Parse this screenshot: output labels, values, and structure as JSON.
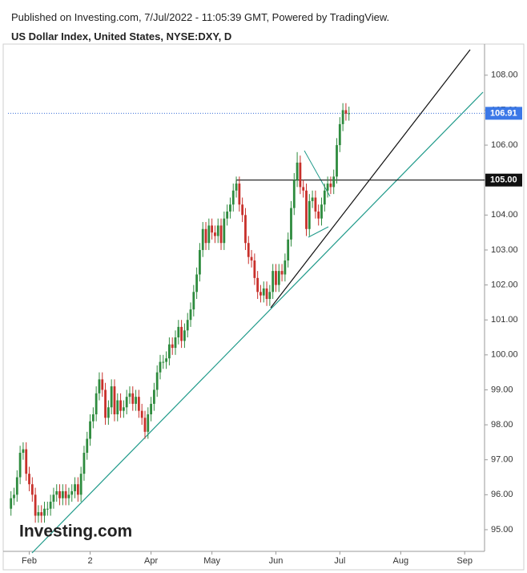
{
  "header": {
    "published": "Published on Investing.com, 7/Jul/2022 - 11:05:39 GMT, Powered by TradingView."
  },
  "chart_data": {
    "type": "candlestick",
    "title": "US Dollar Index, United States, NYSE:DXY, D",
    "logo": "Investing.com",
    "up_color": "#2e8b3e",
    "down_color": "#c8302b",
    "open": [
      95.6,
      95.9,
      96.0,
      96.5,
      97.2,
      97.3,
      96.6,
      96.3,
      96.0,
      95.4,
      95.5,
      95.4,
      95.6,
      95.6,
      95.8,
      96.0,
      96.1,
      95.9,
      96.1,
      95.9,
      96.0,
      96.1,
      96.3,
      96.0,
      96.6,
      97.2,
      97.6,
      98.1,
      98.3,
      98.9,
      99.3,
      99.0,
      98.2,
      98.5,
      99.1,
      98.3,
      98.7,
      98.4,
      98.5,
      98.8,
      98.9,
      98.6,
      98.8,
      98.4,
      98.2,
      97.8,
      98.3,
      98.6,
      99.0,
      99.5,
      99.8,
      99.8,
      99.9,
      100.3,
      100.2,
      100.5,
      100.8,
      100.4,
      100.7,
      101.0,
      101.3,
      101.8,
      102.3,
      103.0,
      103.6,
      103.2,
      103.7,
      103.5,
      103.4,
      103.7,
      103.2,
      103.9,
      104.1,
      104.3,
      104.7,
      104.9,
      104.3,
      104.0,
      103.2,
      102.8,
      102.7,
      102.2,
      101.8,
      101.7,
      101.9,
      101.6,
      101.8,
      102.4,
      102.0,
      102.4,
      102.3,
      102.7,
      103.3,
      104.2,
      105.0,
      105.5,
      104.8,
      104.7,
      103.6,
      104.4,
      104.5,
      104.1,
      103.9,
      104.3,
      104.7,
      104.9,
      104.8,
      105.1,
      106.0,
      106.6,
      107.0,
      106.9
    ],
    "high": [
      96.1,
      96.2,
      96.7,
      97.4,
      97.5,
      97.5,
      96.8,
      96.5,
      96.2,
      95.7,
      95.7,
      95.8,
      95.8,
      96.0,
      96.2,
      96.3,
      96.3,
      96.3,
      96.3,
      96.2,
      96.3,
      96.5,
      96.5,
      96.8,
      97.4,
      97.8,
      98.3,
      98.5,
      99.1,
      99.5,
      99.5,
      99.2,
      98.7,
      99.3,
      99.3,
      98.9,
      98.9,
      98.7,
      99.0,
      99.1,
      99.1,
      99.0,
      99.0,
      98.6,
      98.4,
      98.5,
      98.8,
      99.2,
      99.7,
      100.0,
      100.0,
      100.1,
      100.5,
      100.5,
      100.7,
      101.0,
      101.0,
      100.9,
      101.2,
      101.5,
      102.0,
      102.5,
      103.2,
      103.8,
      103.8,
      103.9,
      103.9,
      103.7,
      103.9,
      103.9,
      104.1,
      104.3,
      104.5,
      104.9,
      105.1,
      105.1,
      104.5,
      104.2,
      103.4,
      103.0,
      102.9,
      102.4,
      102.0,
      102.1,
      102.1,
      102.0,
      102.6,
      102.6,
      102.6,
      102.6,
      102.9,
      103.5,
      104.4,
      105.2,
      105.8,
      105.7,
      105.0,
      104.9,
      104.6,
      104.7,
      104.7,
      104.3,
      104.5,
      104.9,
      105.1,
      105.1,
      105.3,
      106.2,
      106.8,
      107.2,
      107.2,
      107.1
    ],
    "low": [
      95.4,
      95.7,
      95.8,
      96.3,
      97.0,
      96.4,
      96.1,
      95.8,
      95.2,
      95.2,
      95.2,
      95.2,
      95.4,
      95.4,
      95.6,
      95.8,
      95.7,
      95.7,
      95.7,
      95.7,
      95.8,
      95.9,
      95.8,
      95.8,
      96.4,
      97.0,
      97.4,
      97.9,
      98.1,
      98.7,
      98.8,
      98.0,
      98.0,
      98.3,
      98.1,
      98.1,
      98.2,
      98.2,
      98.3,
      98.6,
      98.4,
      98.4,
      98.2,
      98.0,
      97.6,
      97.6,
      98.1,
      98.4,
      98.8,
      99.3,
      99.6,
      99.6,
      99.7,
      100.0,
      100.0,
      100.3,
      100.2,
      100.2,
      100.5,
      100.8,
      101.1,
      101.6,
      102.1,
      102.8,
      103.0,
      103.0,
      103.3,
      103.2,
      103.2,
      103.0,
      103.0,
      103.7,
      103.9,
      104.1,
      104.5,
      104.1,
      103.8,
      103.0,
      102.6,
      102.5,
      102.0,
      101.6,
      101.5,
      101.5,
      101.4,
      101.4,
      101.6,
      101.8,
      101.8,
      102.1,
      102.1,
      102.5,
      103.1,
      104.0,
      104.8,
      104.6,
      104.5,
      103.4,
      103.4,
      104.2,
      103.9,
      103.7,
      103.7,
      104.1,
      104.5,
      104.6,
      104.6,
      104.9,
      105.8,
      106.4,
      106.7,
      106.7
    ],
    "close": [
      95.9,
      96.0,
      96.5,
      97.2,
      97.3,
      96.6,
      96.3,
      96.0,
      95.4,
      95.5,
      95.4,
      95.6,
      95.6,
      95.8,
      96.0,
      96.1,
      95.9,
      96.1,
      95.9,
      96.0,
      96.1,
      96.3,
      96.0,
      96.6,
      97.2,
      97.6,
      98.1,
      98.3,
      98.9,
      99.3,
      99.0,
      98.2,
      98.5,
      99.1,
      98.3,
      98.7,
      98.4,
      98.5,
      98.8,
      98.9,
      98.6,
      98.8,
      98.4,
      98.2,
      97.8,
      98.3,
      98.6,
      99.0,
      99.5,
      99.8,
      99.8,
      99.9,
      100.3,
      100.2,
      100.5,
      100.8,
      100.4,
      100.7,
      101.0,
      101.3,
      101.8,
      102.3,
      103.0,
      103.6,
      103.2,
      103.7,
      103.5,
      103.4,
      103.7,
      103.2,
      103.9,
      104.1,
      104.3,
      104.7,
      104.9,
      104.3,
      104.0,
      103.2,
      102.8,
      102.7,
      102.2,
      101.8,
      101.7,
      101.9,
      101.6,
      101.8,
      102.4,
      102.0,
      102.4,
      102.3,
      102.7,
      103.3,
      104.2,
      105.0,
      105.5,
      104.8,
      104.7,
      103.6,
      104.4,
      104.5,
      104.1,
      103.9,
      104.3,
      104.7,
      104.9,
      104.8,
      105.1,
      106.0,
      106.6,
      107.0,
      106.9,
      106.91
    ],
    "xlim": [
      -1.5,
      155
    ],
    "xticks": [
      {
        "value": 6,
        "label": "Feb"
      },
      {
        "value": 26,
        "label": "2"
      },
      {
        "value": 46,
        "label": "Apr"
      },
      {
        "value": 66,
        "label": "May"
      },
      {
        "value": 87,
        "label": "Jun"
      },
      {
        "value": 108,
        "label": "Jul"
      },
      {
        "value": 128,
        "label": "Aug"
      },
      {
        "value": 149,
        "label": "Sep"
      }
    ],
    "ylim": [
      94.38,
      108.89
    ],
    "yticks": [
      {
        "value": 95,
        "label": "95.00"
      },
      {
        "value": 96,
        "label": "96.00"
      },
      {
        "value": 97,
        "label": "97.00"
      },
      {
        "value": 98,
        "label": "98.00"
      },
      {
        "value": 99,
        "label": "99.00"
      },
      {
        "value": 100,
        "label": "100.00"
      },
      {
        "value": 101,
        "label": "101.00"
      },
      {
        "value": 102,
        "label": "102.00"
      },
      {
        "value": 103,
        "label": "103.00"
      },
      {
        "value": 104,
        "label": "104.00"
      },
      {
        "value": 105,
        "label": "105.00"
      },
      {
        "value": 106,
        "label": "106.00"
      },
      {
        "value": 107,
        "label": "107.00"
      },
      {
        "value": 108,
        "label": "108.00"
      }
    ],
    "last_price": 106.91,
    "level": {
      "value": 105,
      "label": "105.00"
    }
  }
}
